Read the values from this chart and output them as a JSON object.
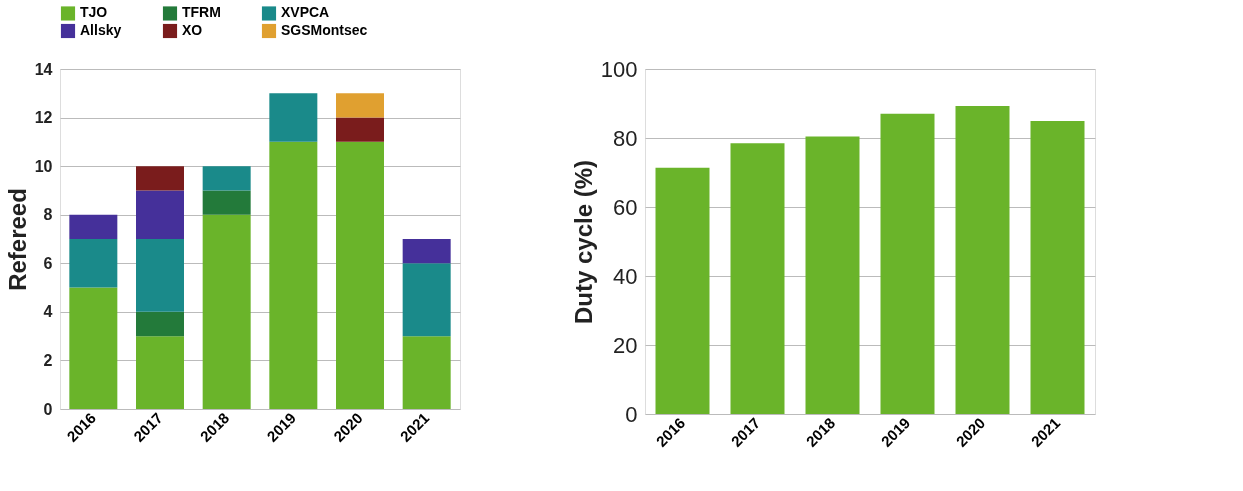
{
  "chart_data": [
    {
      "type": "bar",
      "stacked": true,
      "ylabel": "Refereed",
      "categories": [
        "2016",
        "2017",
        "2018",
        "2019",
        "2020",
        "2021"
      ],
      "ylim": [
        0,
        14
      ],
      "yticks": [
        0,
        2,
        4,
        6,
        8,
        10,
        12,
        14
      ],
      "grid": "y",
      "legend": "top",
      "series": [
        {
          "name": "TJO",
          "color": "#6ab42a",
          "values": [
            5,
            3,
            8,
            11,
            11,
            3
          ]
        },
        {
          "name": "TFRM",
          "color": "#237a3a",
          "values": [
            null,
            1,
            1,
            null,
            null,
            null
          ]
        },
        {
          "name": "XVPCA",
          "color": "#1a8a8a",
          "values": [
            2,
            3,
            1,
            2,
            null,
            3
          ]
        },
        {
          "name": "Allsky",
          "color": "#45309a",
          "values": [
            1,
            2,
            null,
            null,
            null,
            1
          ]
        },
        {
          "name": "XO",
          "color": "#7a1c1c",
          "values": [
            null,
            1,
            null,
            null,
            1,
            null
          ]
        },
        {
          "name": "SGSMontsec",
          "color": "#e0a030",
          "values": [
            null,
            null,
            null,
            null,
            1,
            null
          ]
        }
      ]
    },
    {
      "type": "bar",
      "ylabel": "Duty cycle (%)",
      "categories": [
        "2016",
        "2017",
        "2018",
        "2019",
        "2020",
        "2021"
      ],
      "ylim": [
        0,
        100
      ],
      "yticks": [
        0,
        20,
        40,
        60,
        80,
        100
      ],
      "grid": "y",
      "series": [
        {
          "color": "#6ab42a",
          "values": [
            71.4,
            78.5,
            80.4,
            87.0,
            89.3,
            84.9
          ]
        }
      ]
    }
  ]
}
